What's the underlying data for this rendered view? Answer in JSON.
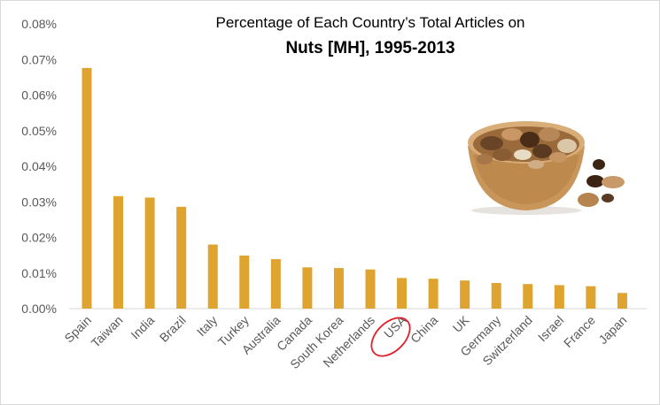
{
  "chart_data": {
    "type": "bar",
    "title": "Percentage of Each Country’s Total Articles on",
    "subtitle": "Nuts [MH], 1995-2013",
    "xlabel": "",
    "ylabel": "",
    "ylim": [
      0,
      0.08
    ],
    "y_ticks": [
      "0.00%",
      "0.01%",
      "0.02%",
      "0.03%",
      "0.04%",
      "0.05%",
      "0.06%",
      "0.07%",
      "0.08%"
    ],
    "grid": false,
    "bar_color": "#dea42f",
    "highlight_color": "#e0202a",
    "highlight_category": "USA",
    "categories": [
      "Spain",
      "Taiwan",
      "India",
      "Brazil",
      "Italy",
      "Turkey",
      "Australia",
      "Canada",
      "South Korea",
      "Netherlands",
      "USA",
      "China",
      "UK",
      "Germany",
      "Switzerland",
      "Israel",
      "France",
      "Japan"
    ],
    "values": [
      0.0676,
      0.0316,
      0.0312,
      0.0286,
      0.018,
      0.0149,
      0.0139,
      0.0116,
      0.0114,
      0.011,
      0.0086,
      0.0084,
      0.0079,
      0.0072,
      0.0069,
      0.0066,
      0.0063,
      0.0044
    ],
    "image": {
      "icon": "nut-bowl-photo"
    }
  }
}
